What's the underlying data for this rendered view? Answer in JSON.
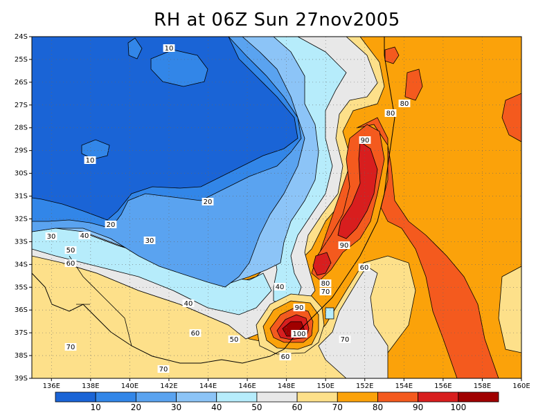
{
  "title": "RH at 06Z Sun 27nov2005",
  "lat_labels": [
    "24S",
    "25S",
    "26S",
    "27S",
    "28S",
    "29S",
    "30S",
    "31S",
    "32S",
    "33S",
    "34S",
    "35S",
    "36S",
    "37S",
    "38S",
    "39S"
  ],
  "lon_labels": [
    "136E",
    "138E",
    "140E",
    "142E",
    "144E",
    "146E",
    "148E",
    "150E",
    "152E",
    "154E",
    "156E",
    "158E",
    "160E"
  ],
  "colorbar": {
    "labels": [
      "10",
      "20",
      "30",
      "40",
      "50",
      "60",
      "70",
      "80",
      "90",
      "100"
    ],
    "colors": [
      "#1a64d6",
      "#3286e8",
      "#5aa3f0",
      "#8cc4f7",
      "#b6ecfb",
      "#e8e8e8",
      "#fde08a",
      "#fba20a",
      "#f45a1e",
      "#d81e1e",
      "#a00000"
    ]
  },
  "contour_labels": [
    {
      "id": "c10a",
      "text": "10"
    },
    {
      "id": "c10b",
      "text": "10"
    },
    {
      "id": "c20a",
      "text": "20"
    },
    {
      "id": "c20b",
      "text": "20"
    },
    {
      "id": "c30a",
      "text": "30"
    },
    {
      "id": "c30b",
      "text": "30"
    },
    {
      "id": "c40a",
      "text": "40"
    },
    {
      "id": "c40b",
      "text": "40"
    },
    {
      "id": "c40c",
      "text": "40"
    },
    {
      "id": "c50a",
      "text": "50"
    },
    {
      "id": "c50b",
      "text": "50"
    },
    {
      "id": "c60a",
      "text": "60"
    },
    {
      "id": "c60b",
      "text": "60"
    },
    {
      "id": "c60c",
      "text": "60"
    },
    {
      "id": "c60d",
      "text": "60"
    },
    {
      "id": "c70a",
      "text": "70"
    },
    {
      "id": "c70b",
      "text": "70"
    },
    {
      "id": "c70c",
      "text": "70"
    },
    {
      "id": "c70d",
      "text": "70"
    },
    {
      "id": "c80a",
      "text": "80"
    },
    {
      "id": "c80b",
      "text": "80"
    },
    {
      "id": "c80c",
      "text": "80"
    },
    {
      "id": "c90a",
      "text": "90"
    },
    {
      "id": "c90b",
      "text": "90"
    },
    {
      "id": "c90c",
      "text": "90"
    },
    {
      "id": "c100",
      "text": "100"
    }
  ]
}
